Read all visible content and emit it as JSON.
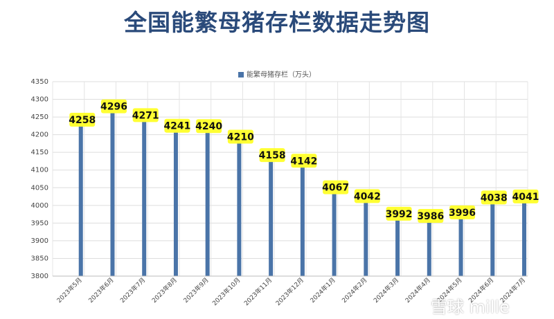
{
  "title": "全国能繁母猪存栏数据走势图",
  "watermark": "雪球 mille",
  "chart_data": {
    "type": "bar",
    "title": "全国能繁母猪存栏数据走势图",
    "series": [
      {
        "name": "能繁母猪存栏（万头）",
        "color": "#4a74a8",
        "values": [
          4258,
          4296,
          4271,
          4241,
          4240,
          4210,
          4158,
          4142,
          4067,
          4042,
          3992,
          3986,
          3996,
          4038,
          4041
        ]
      }
    ],
    "categories": [
      "2023年5月",
      "2023年6月",
      "2023年7月",
      "2023年8月",
      "2023年9月",
      "2023年10月",
      "2023年11月",
      "2023年12月",
      "2024年1月",
      "2024年2月",
      "2024年3月",
      "2024年4月",
      "2024年5月",
      "2024年6月",
      "2024年7月"
    ],
    "ylim": [
      3800,
      4350
    ],
    "yticks": [
      3800,
      3850,
      3900,
      3950,
      4000,
      4050,
      4100,
      4150,
      4200,
      4250,
      4300,
      4350
    ],
    "grid": true,
    "legend_position": "top-center",
    "label_bg": "#ffff33"
  }
}
